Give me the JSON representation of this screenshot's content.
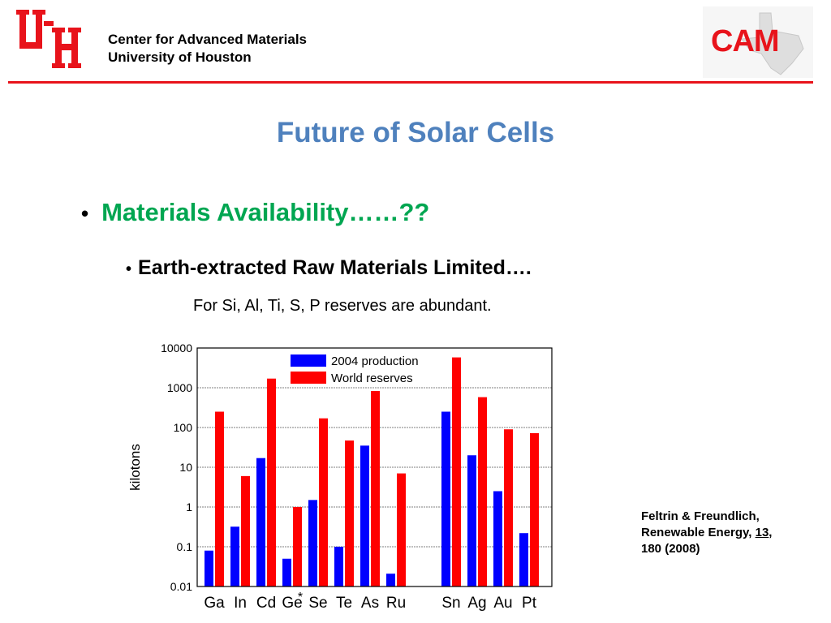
{
  "header": {
    "logo_text": "UH",
    "org_line1": "Center for Advanced Materials",
    "org_line2": "University of Houston",
    "cam_logo_text": "CAM"
  },
  "slide": {
    "title": "Future of Solar Cells",
    "bullet1": "Materials Availability……??",
    "bullet2": "Earth-extracted Raw Materials Limited….",
    "note": "For Si, Al, Ti, S, P reserves are abundant."
  },
  "citation": {
    "line1": "Feltrin & Freundlich,",
    "line2_prefix": "Renewable Energy, ",
    "volume": "13",
    "line2_suffix": ",",
    "line3": "180 (2008)"
  },
  "colors": {
    "uh_red": "#e8131b",
    "title_blue": "#4f81bd",
    "bullet_green": "#00a651",
    "production": "#0000ff",
    "reserves": "#ff0000"
  },
  "chart_data": {
    "type": "bar",
    "scale": "log",
    "ylabel": "kilotons",
    "xlabel": "",
    "ylim": [
      0.01,
      10000
    ],
    "yticks": [
      "0.01",
      "0.1",
      "1",
      "10",
      "100",
      "1000",
      "10000"
    ],
    "legend_position": "top-center",
    "categories": [
      "Ga",
      "In",
      "Cd",
      "Ge",
      "Se",
      "Te",
      "As",
      "Ru",
      "Sn",
      "Ag",
      "Au",
      "Pt"
    ],
    "asterisk_label": "*",
    "series": [
      {
        "name": "2004 production",
        "color": "#0000ff",
        "values": [
          0.08,
          0.32,
          17,
          0.05,
          1.5,
          0.1,
          35,
          0.021,
          250,
          20,
          2.5,
          0.22
        ]
      },
      {
        "name": "World reserves",
        "color": "#ff0000",
        "values": [
          250,
          6,
          1700,
          1,
          170,
          47,
          830,
          7,
          5800,
          580,
          90,
          72
        ]
      }
    ]
  }
}
